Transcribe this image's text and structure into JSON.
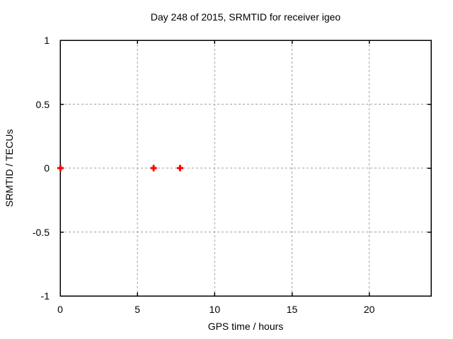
{
  "window": {
    "background": "#ffffff"
  },
  "chart_data": {
    "type": "scatter",
    "title": "Day 248 of 2015, SRMTID for receiver igeo",
    "xlabel": "GPS time / hours",
    "ylabel": "SRMTID / TECUs",
    "xlim": [
      0,
      24
    ],
    "ylim": [
      -1,
      1
    ],
    "xticks": {
      "values": [
        0,
        5,
        10,
        15,
        20
      ],
      "labels": [
        "0",
        "5",
        "10",
        "15",
        "20"
      ]
    },
    "yticks": {
      "values": [
        -1,
        -0.5,
        0,
        0.5,
        1
      ],
      "labels": [
        "-1",
        "-0.5",
        "0",
        "0.5",
        "1"
      ]
    },
    "grid": true,
    "grid_style": "dashed",
    "legend": "none",
    "series": [
      {
        "name": "SRMTID",
        "marker": "plus",
        "color": "#ff0000",
        "points": [
          {
            "x": 0.02,
            "y": 0
          },
          {
            "x": 6.05,
            "y": 0
          },
          {
            "x": 7.76,
            "y": 0
          }
        ]
      }
    ],
    "colors": {
      "axis": "#000000",
      "grid": "#a0a0a0",
      "text": "#000000"
    }
  }
}
